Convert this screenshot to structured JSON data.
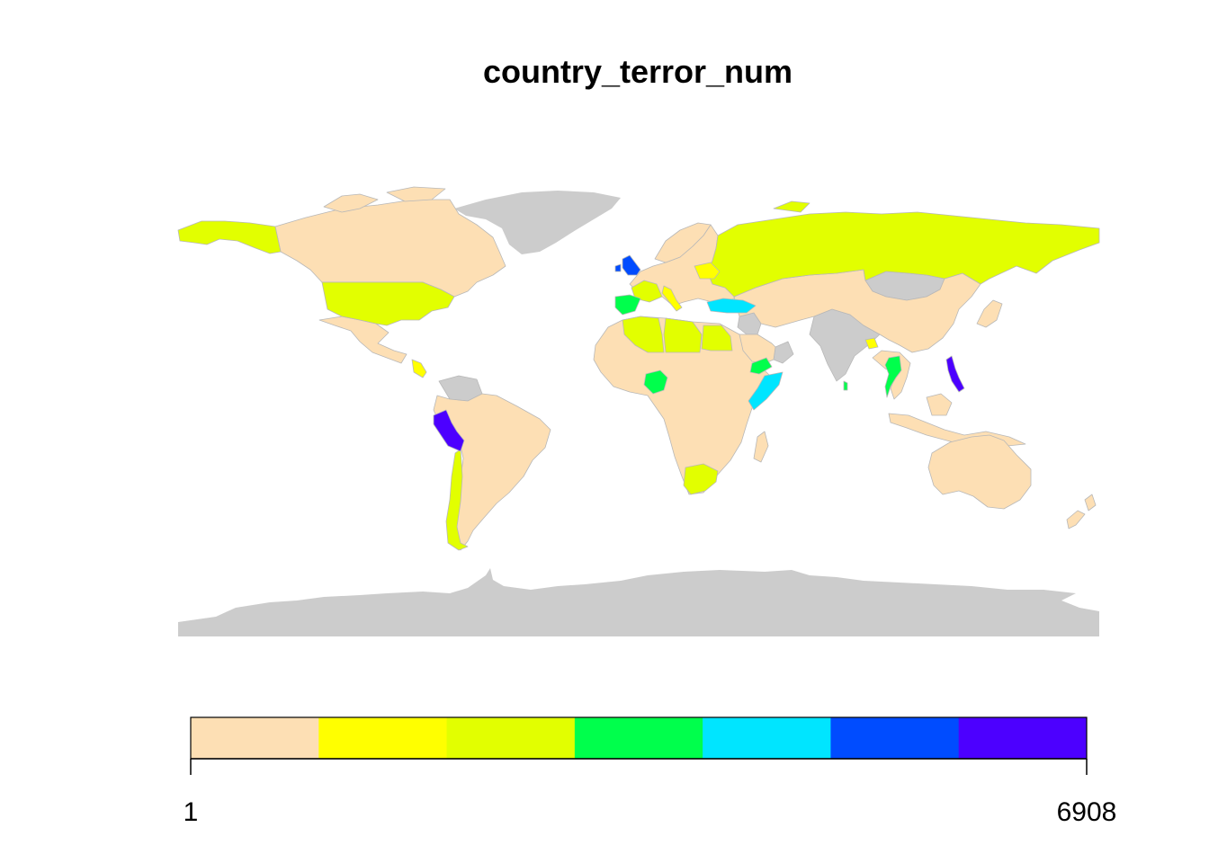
{
  "title": "country_terror_num",
  "legend": {
    "min_label": "1",
    "max_label": "6908",
    "colors": [
      "#FDDFB4",
      "#FFFF00",
      "#E2FF00",
      "#00FF4C",
      "#00E5FF",
      "#004CFF",
      "#4C00FF"
    ]
  },
  "map": {
    "no_data_color": "#CCCCCC",
    "base_color": "#FDDFB4",
    "border_color": "#B8B8B8",
    "highlighted_regions": [
      {
        "name": "United States",
        "class": 3
      },
      {
        "name": "Canada",
        "class": 1
      },
      {
        "name": "Alaska",
        "class": 3
      },
      {
        "name": "Mexico",
        "class": 1
      },
      {
        "name": "Central America",
        "class": 2
      },
      {
        "name": "Colombia",
        "class": 1
      },
      {
        "name": "Peru",
        "class": 7
      },
      {
        "name": "Chile",
        "class": 3
      },
      {
        "name": "United Kingdom",
        "class": 6
      },
      {
        "name": "Spain",
        "class": 4
      },
      {
        "name": "France",
        "class": 3
      },
      {
        "name": "Italy",
        "class": 2
      },
      {
        "name": "Ukraine",
        "class": 2
      },
      {
        "name": "Russia",
        "class": 3
      },
      {
        "name": "Turkey",
        "class": 5
      },
      {
        "name": "Algeria",
        "class": 3
      },
      {
        "name": "Libya",
        "class": 3
      },
      {
        "name": "Egypt",
        "class": 3
      },
      {
        "name": "Nigeria",
        "class": 4
      },
      {
        "name": "Somalia",
        "class": 5
      },
      {
        "name": "Yemen",
        "class": 4
      },
      {
        "name": "South Africa",
        "class": 3
      },
      {
        "name": "Sri Lanka",
        "class": 4
      },
      {
        "name": "Thailand",
        "class": 4
      },
      {
        "name": "Philippines",
        "class": 7
      },
      {
        "name": "Bangladesh",
        "class": 2
      }
    ],
    "no_data_regions": [
      "Greenland",
      "Antarctica",
      "Mongolia",
      "India",
      "Venezuela",
      "Iraq",
      "Oman"
    ]
  }
}
